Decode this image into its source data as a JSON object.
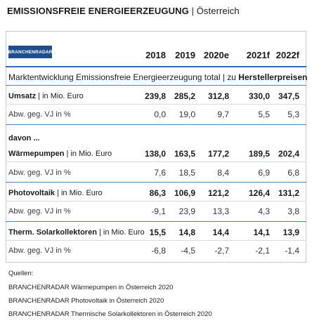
{
  "header": {
    "title_main": "EMISSIONSFREIE ENERGIEERZEUGUNG",
    "title_sep": " | ",
    "title_region": "Österreich"
  },
  "logo": {
    "text": "BRANCHENRADAR"
  },
  "years": [
    "2018",
    "2019",
    "2020e",
    "2021f",
    "2022f"
  ],
  "subtitle": {
    "prefix": "Marktentwicklung Emissionsfreie Energieerzeugung total | zu ",
    "bold": "Herstellerpreisen"
  },
  "davon": "davon ...",
  "unit": " | in Mio. Euro",
  "chg_label": "Abw. geg. VJ in %",
  "rows": [
    {
      "name": "Umsatz",
      "values": [
        "239,8",
        "285,2",
        "312,8",
        "330,0",
        "347,5"
      ],
      "changes": [
        "0,0",
        "19,0",
        "9,7",
        "5,5",
        "5,3"
      ]
    },
    {
      "name": "Wärmepumpen",
      "values": [
        "138,0",
        "163,5",
        "177,2",
        "189,5",
        "202,4"
      ],
      "changes": [
        "7,6",
        "18,5",
        "8,4",
        "6,9",
        "6,8"
      ]
    },
    {
      "name": "Photovoltaik",
      "values": [
        "86,3",
        "106,9",
        "121,2",
        "126,4",
        "131,2"
      ],
      "changes": [
        "-9,1",
        "23,9",
        "13,3",
        "4,3",
        "3,8"
      ]
    },
    {
      "name": "Therm. Solarkollektoren",
      "values": [
        "15,5",
        "14,8",
        "14,4",
        "14,1",
        "13,9"
      ],
      "changes": [
        "-6,8",
        "-4,5",
        "-2,7",
        "-2,1",
        "-1,4"
      ]
    }
  ],
  "sources": {
    "heading": "Quellen:",
    "items": [
      "BRANCHENRADAR Wärmepumpen in Österreich 2020",
      "BRANCHENRADAR Photovoltaik in Österreich 2020",
      "BRANCHENRADAR Thermische Solarkollektoren in Österreich 2020"
    ]
  }
}
